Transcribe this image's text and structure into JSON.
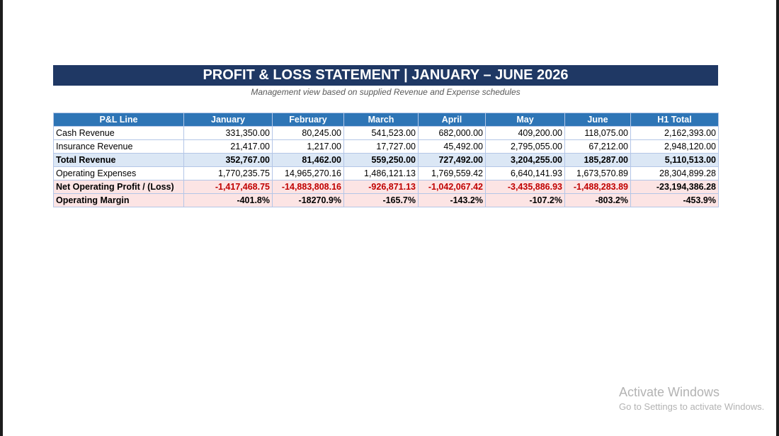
{
  "report": {
    "title": "PROFIT & LOSS STATEMENT | JANUARY – JUNE 2026",
    "subtitle": "Management view based on supplied Revenue and Expense schedules"
  },
  "table": {
    "headers": [
      "P&L Line",
      "January",
      "February",
      "March",
      "April",
      "May",
      "June",
      "H1 Total"
    ],
    "rows": [
      {
        "label": "Cash Revenue",
        "values": [
          "331,350.00",
          "80,245.00",
          "541,523.00",
          "682,000.00",
          "409,200.00",
          "118,075.00",
          "2,162,393.00"
        ]
      },
      {
        "label": "Insurance Revenue",
        "values": [
          "21,417.00",
          "1,217.00",
          "17,727.00",
          "45,492.00",
          "2,795,055.00",
          "67,212.00",
          "2,948,120.00"
        ]
      },
      {
        "label": "Total Revenue",
        "values": [
          "352,767.00",
          "81,462.00",
          "559,250.00",
          "727,492.00",
          "3,204,255.00",
          "185,287.00",
          "5,110,513.00"
        ]
      },
      {
        "label": "Operating Expenses",
        "values": [
          "1,770,235.75",
          "14,965,270.16",
          "1,486,121.13",
          "1,769,559.42",
          "6,640,141.93",
          "1,673,570.89",
          "28,304,899.28"
        ]
      },
      {
        "label": "Net Operating Profit / (Loss)",
        "values": [
          "-1,417,468.75",
          "-14,883,808.16",
          "-926,871.13",
          "-1,042,067.42",
          "-3,435,886.93",
          "-1,488,283.89",
          "-23,194,386.28"
        ]
      },
      {
        "label": "Operating Margin",
        "values": [
          "-401.8%",
          "-18270.9%",
          "-165.7%",
          "-143.2%",
          "-107.2%",
          "-803.2%",
          "-453.9%"
        ]
      }
    ]
  },
  "colors": {
    "title_bg": "#1f3864",
    "header_bg": "#2e75b6",
    "total_row_bg": "#dbe7f5",
    "loss_row_bg": "#fce4e4",
    "loss_text": "#c00000"
  },
  "watermark": {
    "title": "Activate Windows",
    "subtitle": "Go to Settings to activate Windows."
  }
}
